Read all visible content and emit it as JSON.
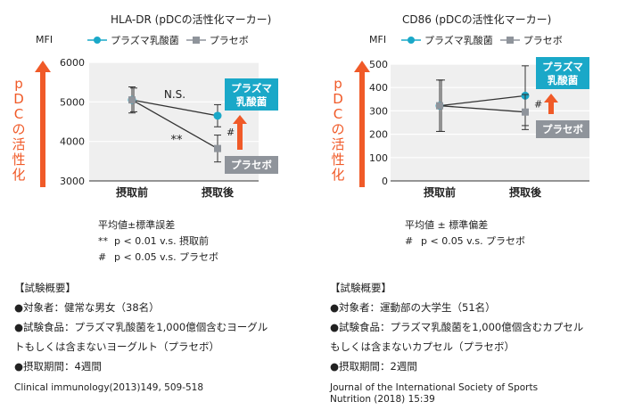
{
  "colors": {
    "probiotic": "#1aa8c8",
    "placebo": "#8f949b",
    "accent": "#f05a28",
    "plot_bg": "#efefef"
  },
  "legend": {
    "probiotic": "プラズマ乳酸菌",
    "placebo": "プラセボ"
  },
  "pdc_label": [
    "p",
    "D",
    "C",
    "の",
    "活",
    "性",
    "化"
  ],
  "chart_data": [
    {
      "type": "line",
      "title": "HLA-DR (pDCの活性化マーカー)",
      "ylabel": "MFI",
      "categories": [
        "摂取前",
        "摂取後"
      ],
      "ylim": [
        3000,
        6000
      ],
      "yticks": [
        "3000",
        "4000",
        "5000",
        "6000"
      ],
      "grid": true,
      "series": [
        {
          "name": "プラズマ乳酸菌",
          "values": [
            5050,
            4650
          ],
          "err": [
            330,
            280
          ]
        },
        {
          "name": "プラセボ",
          "values": [
            5050,
            3820
          ],
          "err": [
            300,
            340
          ]
        }
      ],
      "annotations": {
        "ns": "N.S.",
        "sig_between": "**",
        "sig_placebo": "#"
      },
      "boxes": {
        "probiotic": [
          "プラズマ",
          "乳酸菌"
        ],
        "placebo": "プラセボ"
      },
      "stats": {
        "heading": "平均値±標準誤差",
        "lines": [
          {
            "sym": "**",
            "text": "p < 0.01 v.s. 摂取前"
          },
          {
            "sym": "#",
            "text": "p < 0.05 v.s. プラセボ"
          }
        ]
      },
      "summary": [
        "【試験概要】",
        "●対象者：健常な男女（38名）",
        "●試験食品：プラズマ乳酸菌を1,000億個含むヨーグル",
        "トもしくは含まないヨーグルト（プラセボ）",
        "●摂取期間：4週間"
      ],
      "reference": [
        "Clinical immunology(2013)149, 509-518"
      ]
    },
    {
      "type": "line",
      "title": "CD86 (pDCの活性化マーカー)",
      "ylabel": "MFI",
      "categories": [
        "摂取前",
        "摂取後"
      ],
      "ylim": [
        0,
        500
      ],
      "yticks": [
        "0",
        "100",
        "200",
        "300",
        "400",
        "500"
      ],
      "grid": true,
      "series": [
        {
          "name": "プラズマ乳酸菌",
          "values": [
            322,
            365
          ],
          "err": [
            110,
            128
          ]
        },
        {
          "name": "プラセボ",
          "values": [
            322,
            295
          ],
          "err": [
            110,
            75
          ]
        }
      ],
      "annotations": {
        "sig_placebo": "#"
      },
      "boxes": {
        "probiotic": [
          "プラズマ",
          "乳酸菌"
        ],
        "placebo": "プラセボ"
      },
      "stats": {
        "heading": "平均値 ± 標準偏差",
        "lines": [
          {
            "sym": "#",
            "text": "p < 0.05 v.s. プラセボ"
          }
        ]
      },
      "summary": [
        "【試験概要】",
        "●対象者：運動部の大学生（51名）",
        "●試験食品：プラズマ乳酸菌を1,000億個含むカプセル",
        "もしくは含まないカプセル（プラセボ）",
        "●摂取期間：2週間"
      ],
      "reference": [
        "Journal of the International Society of Sports",
        "Nutrition (2018) 15:39"
      ]
    }
  ]
}
